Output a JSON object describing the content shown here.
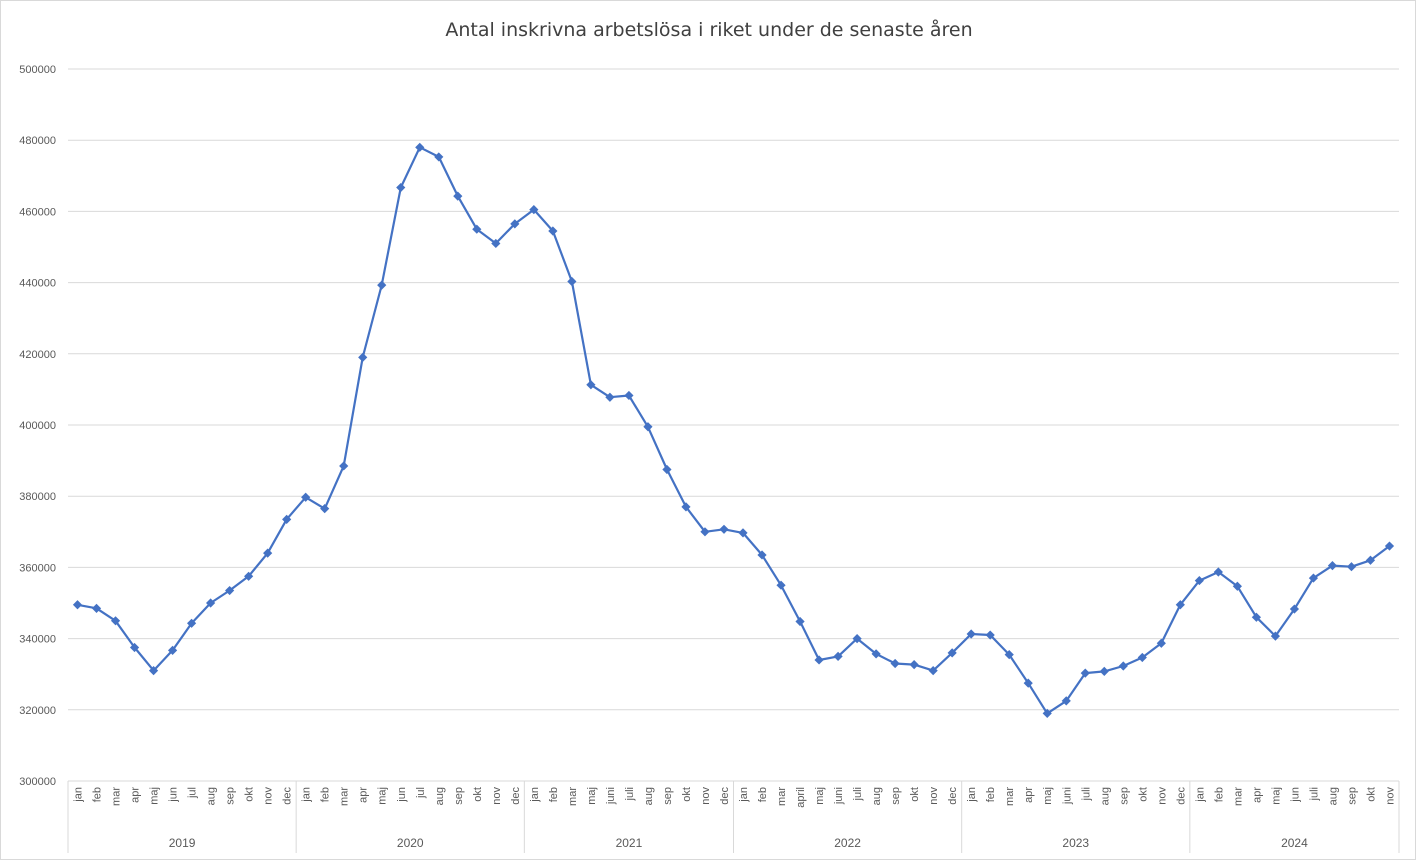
{
  "chart_data": {
    "type": "line",
    "title": "Antal inskrivna arbetslösa i riket under de senaste åren",
    "xlabel": "",
    "ylabel": "",
    "ylim": [
      300000,
      500000
    ],
    "yticks": [
      300000,
      320000,
      340000,
      360000,
      380000,
      400000,
      420000,
      440000,
      460000,
      480000,
      500000
    ],
    "grid": true,
    "legend": "none",
    "color": "#4472c4",
    "marker": "diamond",
    "years": [
      {
        "label": "2019",
        "months": 12
      },
      {
        "label": "2020",
        "months": 12
      },
      {
        "label": "2021",
        "months": 11
      },
      {
        "label": "2022",
        "months": 12
      },
      {
        "label": "2023",
        "months": 12
      },
      {
        "label": "2024",
        "months": 11
      }
    ],
    "categories": [
      "jan",
      "feb",
      "mar",
      "apr",
      "maj",
      "jun",
      "jul",
      "aug",
      "sep",
      "okt",
      "nov",
      "dec",
      "jan",
      "feb",
      "mar",
      "apr",
      "maj",
      "jun",
      "jul",
      "aug",
      "sep",
      "okt",
      "nov",
      "dec",
      "jan",
      "feb",
      "mar",
      "maj",
      "juni",
      "juli",
      "aug",
      "sep",
      "okt",
      "nov",
      "dec",
      "jan",
      "feb",
      "mar",
      "april",
      "maj",
      "juni",
      "juli",
      "aug",
      "sep",
      "okt",
      "nov",
      "dec",
      "jan",
      "feb",
      "mar",
      "apr",
      "maj",
      "juni",
      "juli",
      "aug",
      "sep",
      "okt",
      "nov",
      "dec",
      "jan",
      "feb",
      "mar",
      "apr",
      "maj",
      "jun",
      "juli",
      "aug",
      "sep",
      "okt",
      "nov"
    ],
    "values": [
      349500,
      348500,
      345000,
      337500,
      331000,
      336700,
      344300,
      350000,
      353500,
      357500,
      364000,
      373500,
      379700,
      376500,
      388500,
      419000,
      439300,
      466700,
      478000,
      475300,
      464300,
      455000,
      451000,
      456500,
      460500,
      454500,
      440300,
      411300,
      407800,
      408300,
      399500,
      387500,
      377000,
      370000,
      370700,
      369700,
      363500,
      355000,
      344800,
      334000,
      335000,
      340000,
      335700,
      333000,
      332700,
      331000,
      336000,
      341300,
      341000,
      335500,
      327500,
      319000,
      322500,
      330300,
      330800,
      332300,
      334700,
      338700,
      349500,
      356300,
      358700,
      354700,
      346000,
      340700,
      348300,
      357000,
      360500,
      360200,
      362000,
      366000
    ]
  }
}
